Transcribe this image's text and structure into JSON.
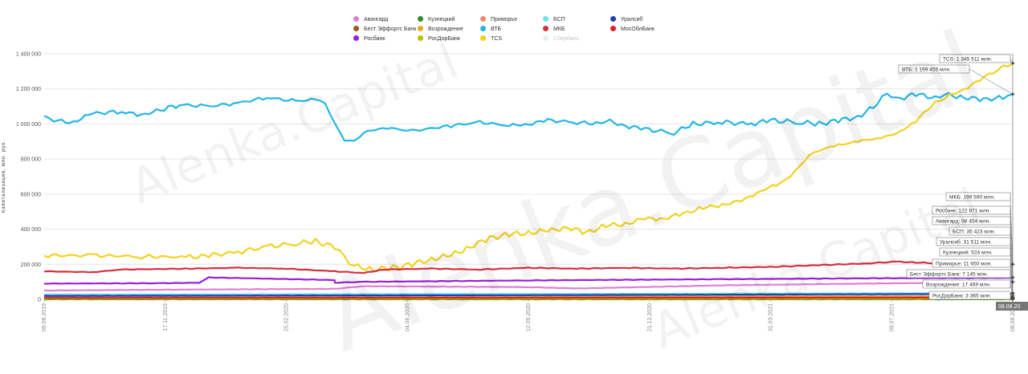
{
  "watermark": "Alenka.Capital",
  "chart_data": {
    "type": "line",
    "ylabel": "Капитализация, млн. руб.",
    "ylim": [
      0,
      1400000
    ],
    "yticks": [
      0,
      200000,
      400000,
      600000,
      800000,
      1000000,
      1200000,
      1400000
    ],
    "ytick_labels": [
      "0",
      "200 000",
      "400 000",
      "600 000",
      "800 000",
      "1 000 000",
      "1 200 000",
      "1 400 000"
    ],
    "x_ticks": [
      "09.08.2019",
      "17.11.2019",
      "25.02.2020",
      "04.06.2020",
      "12.09.2020",
      "21.12.2020",
      "31.03.2021",
      "09.07.2021",
      "08.08.2021"
    ],
    "cursor_label": "08.08.20",
    "series": [
      {
        "name": "Авангард",
        "color": "#e07fd6",
        "values": [
          [
            0,
            50000
          ],
          [
            0.12,
            55000
          ],
          [
            0.3,
            60000
          ],
          [
            0.33,
            75000
          ],
          [
            0.5,
            70000
          ],
          [
            0.55,
            62000
          ],
          [
            0.7,
            80000
          ],
          [
            0.85,
            90000
          ],
          [
            1,
            98454
          ]
        ]
      },
      {
        "name": "Бест Эффортс Банк",
        "color": "#9a5a1a",
        "values": [
          [
            0,
            6000
          ],
          [
            0.5,
            6500
          ],
          [
            1,
            7145
          ]
        ]
      },
      {
        "name": "Росбанк",
        "color": "#9b1fd6",
        "values": [
          [
            0,
            90000
          ],
          [
            0.12,
            92000
          ],
          [
            0.16,
            95000
          ],
          [
            0.17,
            125000
          ],
          [
            0.3,
            110000
          ],
          [
            0.3,
            95000
          ],
          [
            0.33,
            100000
          ],
          [
            0.5,
            108000
          ],
          [
            0.7,
            115000
          ],
          [
            0.85,
            120000
          ],
          [
            1,
            122871
          ]
        ]
      },
      {
        "name": "Кузнецкий",
        "color": "#2e8b2e",
        "values": [
          [
            0,
            400
          ],
          [
            0.5,
            450
          ],
          [
            1,
            524
          ]
        ]
      },
      {
        "name": "Возрождение",
        "color": "#e0b020",
        "values": [
          [
            0,
            17000
          ],
          [
            0.5,
            17200
          ],
          [
            1,
            17469
          ]
        ]
      },
      {
        "name": "РосДорБанк",
        "color": "#b8c000",
        "values": [
          [
            0,
            3000
          ],
          [
            0.5,
            3200
          ],
          [
            1,
            3365
          ]
        ]
      },
      {
        "name": "Приморье",
        "color": "#f08a6a",
        "values": [
          [
            0,
            10000
          ],
          [
            0.5,
            11000
          ],
          [
            1,
            11650
          ]
        ]
      },
      {
        "name": "ВТБ",
        "color": "#22b7e6",
        "values": [
          [
            0,
            1040000
          ],
          [
            0.01,
            1020000
          ],
          [
            0.03,
            1010000
          ],
          [
            0.05,
            1060000
          ],
          [
            0.08,
            1070000
          ],
          [
            0.1,
            1050000
          ],
          [
            0.14,
            1110000
          ],
          [
            0.17,
            1100000
          ],
          [
            0.2,
            1120000
          ],
          [
            0.23,
            1150000
          ],
          [
            0.26,
            1130000
          ],
          [
            0.28,
            1140000
          ],
          [
            0.29,
            1120000
          ],
          [
            0.3,
            1000000
          ],
          [
            0.31,
            910000
          ],
          [
            0.32,
            900000
          ],
          [
            0.33,
            950000
          ],
          [
            0.35,
            980000
          ],
          [
            0.38,
            960000
          ],
          [
            0.42,
            990000
          ],
          [
            0.45,
            1010000
          ],
          [
            0.48,
            990000
          ],
          [
            0.5,
            1000000
          ],
          [
            0.52,
            1020000
          ],
          [
            0.55,
            1010000
          ],
          [
            0.57,
            1000000
          ],
          [
            0.58,
            1020000
          ],
          [
            0.6,
            990000
          ],
          [
            0.62,
            970000
          ],
          [
            0.65,
            950000
          ],
          [
            0.67,
            1000000
          ],
          [
            0.7,
            1010000
          ],
          [
            0.73,
            1000000
          ],
          [
            0.75,
            1020000
          ],
          [
            0.78,
            1010000
          ],
          [
            0.8,
            1000000
          ],
          [
            0.82,
            1020000
          ],
          [
            0.84,
            1040000
          ],
          [
            0.86,
            1110000
          ],
          [
            0.87,
            1180000
          ],
          [
            0.88,
            1140000
          ],
          [
            0.9,
            1170000
          ],
          [
            0.92,
            1150000
          ],
          [
            0.93,
            1170000
          ],
          [
            0.95,
            1150000
          ],
          [
            0.97,
            1140000
          ],
          [
            0.99,
            1150000
          ],
          [
            1,
            1169455
          ]
        ]
      },
      {
        "name": "TCS",
        "color": "#f2d21e",
        "values": [
          [
            0,
            250000
          ],
          [
            0.05,
            250000
          ],
          [
            0.1,
            245000
          ],
          [
            0.15,
            240000
          ],
          [
            0.17,
            250000
          ],
          [
            0.2,
            270000
          ],
          [
            0.23,
            300000
          ],
          [
            0.26,
            320000
          ],
          [
            0.28,
            330000
          ],
          [
            0.3,
            300000
          ],
          [
            0.31,
            240000
          ],
          [
            0.32,
            190000
          ],
          [
            0.34,
            170000
          ],
          [
            0.36,
            180000
          ],
          [
            0.38,
            200000
          ],
          [
            0.4,
            230000
          ],
          [
            0.42,
            250000
          ],
          [
            0.44,
            300000
          ],
          [
            0.46,
            350000
          ],
          [
            0.48,
            370000
          ],
          [
            0.5,
            380000
          ],
          [
            0.52,
            390000
          ],
          [
            0.54,
            410000
          ],
          [
            0.56,
            380000
          ],
          [
            0.58,
            420000
          ],
          [
            0.6,
            430000
          ],
          [
            0.62,
            460000
          ],
          [
            0.64,
            460000
          ],
          [
            0.66,
            490000
          ],
          [
            0.68,
            520000
          ],
          [
            0.7,
            540000
          ],
          [
            0.72,
            560000
          ],
          [
            0.74,
            620000
          ],
          [
            0.76,
            660000
          ],
          [
            0.77,
            700000
          ],
          [
            0.78,
            760000
          ],
          [
            0.79,
            820000
          ],
          [
            0.8,
            850000
          ],
          [
            0.82,
            880000
          ],
          [
            0.84,
            900000
          ],
          [
            0.86,
            920000
          ],
          [
            0.88,
            940000
          ],
          [
            0.9,
            1020000
          ],
          [
            0.92,
            1120000
          ],
          [
            0.93,
            1150000
          ],
          [
            0.95,
            1200000
          ],
          [
            0.97,
            1260000
          ],
          [
            0.98,
            1300000
          ],
          [
            0.99,
            1320000
          ],
          [
            1,
            1345511
          ]
        ]
      },
      {
        "name": "БСП",
        "color": "#6fe3f0",
        "values": [
          [
            0,
            28000
          ],
          [
            0.5,
            31000
          ],
          [
            1,
            35423
          ]
        ]
      },
      {
        "name": "МКБ",
        "color": "#d4313f",
        "values": [
          [
            0,
            160000
          ],
          [
            0.05,
            155000
          ],
          [
            0.08,
            170000
          ],
          [
            0.15,
            175000
          ],
          [
            0.2,
            180000
          ],
          [
            0.25,
            175000
          ],
          [
            0.3,
            160000
          ],
          [
            0.33,
            150000
          ],
          [
            0.35,
            170000
          ],
          [
            0.4,
            175000
          ],
          [
            0.45,
            170000
          ],
          [
            0.5,
            180000
          ],
          [
            0.55,
            175000
          ],
          [
            0.6,
            180000
          ],
          [
            0.65,
            175000
          ],
          [
            0.7,
            180000
          ],
          [
            0.75,
            185000
          ],
          [
            0.8,
            195000
          ],
          [
            0.85,
            205000
          ],
          [
            0.88,
            215000
          ],
          [
            0.9,
            210000
          ],
          [
            0.95,
            200000
          ],
          [
            1,
            199590
          ]
        ]
      },
      {
        "name": "Сбербанк",
        "color": "#bfe9d4",
        "hidden": true,
        "values": []
      },
      {
        "name": "Уралсиб",
        "color": "#1f3fb8",
        "values": [
          [
            0,
            20000
          ],
          [
            0.5,
            24000
          ],
          [
            0.9,
            30000
          ],
          [
            1,
            31511
          ]
        ]
      },
      {
        "name": "МосОблБанк",
        "color": "#e0202a",
        "values": [
          [
            0,
            8000
          ],
          [
            0.5,
            9000
          ],
          [
            1,
            10000
          ]
        ]
      }
    ],
    "end_labels": [
      {
        "text": "TCS: 1 345 511 млн.",
        "value": 1345511
      },
      {
        "text": "ВТБ: 1 169 455 млн.",
        "value": 1169455
      },
      {
        "text": "МКБ: 199 590 млн.",
        "value": 199590
      },
      {
        "text": "Росбанк: 122 871 млн.",
        "value": 122871
      },
      {
        "text": "Авангард: 98 454 млн.",
        "value": 98454
      },
      {
        "text": "БСП: 35 423 млн.",
        "value": 35423
      },
      {
        "text": "Уралсиб: 31 511 млн.",
        "value": 31511
      },
      {
        "text": "Кузнецкий: 524 млн.",
        "value": 524
      },
      {
        "text": "Приморье: 11 650 млн.",
        "value": 11650
      },
      {
        "text": "Бест Эффортс Банк: 7 145 млн.",
        "value": 7145
      },
      {
        "text": "Возрождение: 17 469 млн.",
        "value": 17469
      },
      {
        "text": "РосДорБанк: 3 365 млн.",
        "value": 3365
      }
    ]
  }
}
